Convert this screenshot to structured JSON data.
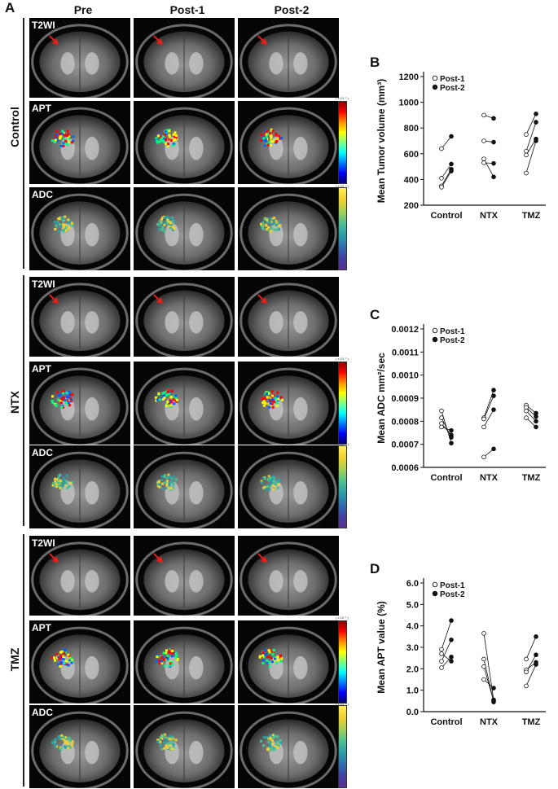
{
  "panel_a": {
    "letter": "A",
    "columns": [
      "Pre",
      "Post-1",
      "Post-2"
    ],
    "groups": [
      {
        "name": "Control",
        "rows": [
          "T2WI",
          "APT",
          "ADC"
        ]
      },
      {
        "name": "NTX",
        "rows": [
          "T2WI",
          "APT",
          "ADC"
        ]
      },
      {
        "name": "TMZ",
        "rows": [
          "T2WI",
          "APT",
          "ADC"
        ]
      }
    ],
    "apt_colorbar_unit": "( x 10⁻¹ )",
    "adc_colorbar_unit": "( x 10⁻⁴ )"
  },
  "colors": {
    "arrow": "#e8201a",
    "apt_map": [
      "#ff0000",
      "#ffff00",
      "#00ff80",
      "#0060ff"
    ],
    "adc_map": [
      "#f2d030",
      "#50c090",
      "#2aa0a8"
    ]
  },
  "chart_data": [
    {
      "letter": "B",
      "type": "scatter",
      "ylabel": "Mean Tumor volume (mm³)",
      "categories": [
        "Control",
        "NTX",
        "TMZ"
      ],
      "ylim": [
        200,
        1200
      ],
      "yticks": [
        "200",
        "400",
        "600",
        "800",
        "1000",
        "1200"
      ],
      "legend": [
        "Post-1",
        "Post-2"
      ],
      "series": [
        {
          "name": "Post-1",
          "fill": "open",
          "points": [
            [
              0,
              640
            ],
            [
              0,
              410
            ],
            [
              0,
              350
            ],
            [
              0,
              340
            ],
            [
              1,
              900
            ],
            [
              1,
              700
            ],
            [
              1,
              560
            ],
            [
              1,
              530
            ],
            [
              2,
              750
            ],
            [
              2,
              620
            ],
            [
              2,
              590
            ],
            [
              2,
              450
            ]
          ]
        },
        {
          "name": "Post-2",
          "fill": "filled",
          "points": [
            [
              0,
              735
            ],
            [
              0,
              520
            ],
            [
              0,
              480
            ],
            [
              0,
              465
            ],
            [
              1,
              875
            ],
            [
              1,
              690
            ],
            [
              1,
              525
            ],
            [
              1,
              420
            ],
            [
              2,
              910
            ],
            [
              2,
              845
            ],
            [
              2,
              715
            ],
            [
              2,
              700
            ]
          ]
        }
      ],
      "pairs": [
        [
          [
            0,
            640
          ],
          [
            0,
            735
          ]
        ],
        [
          [
            0,
            410
          ],
          [
            0,
            520
          ]
        ],
        [
          [
            0,
            350
          ],
          [
            0,
            480
          ]
        ],
        [
          [
            0,
            340
          ],
          [
            0,
            465
          ]
        ],
        [
          [
            1,
            900
          ],
          [
            1,
            875
          ]
        ],
        [
          [
            1,
            700
          ],
          [
            1,
            690
          ]
        ],
        [
          [
            1,
            560
          ],
          [
            1,
            420
          ]
        ],
        [
          [
            1,
            530
          ],
          [
            1,
            525
          ]
        ],
        [
          [
            2,
            750
          ],
          [
            2,
            910
          ]
        ],
        [
          [
            2,
            620
          ],
          [
            2,
            845
          ]
        ],
        [
          [
            2,
            590
          ],
          [
            2,
            715
          ]
        ],
        [
          [
            2,
            450
          ],
          [
            2,
            700
          ]
        ]
      ]
    },
    {
      "letter": "C",
      "type": "scatter",
      "ylabel": "Mean ADC mm²/sec",
      "categories": [
        "Control",
        "NTX",
        "TMZ"
      ],
      "ylim": [
        0.0006,
        0.0012
      ],
      "yticks": [
        "0.0006",
        "0.0007",
        "0.0008",
        "0.0009",
        "0.0010",
        "0.0011",
        "0.0012"
      ],
      "legend": [
        "Post-1",
        "Post-2"
      ],
      "series": [
        {
          "name": "Post-1",
          "fill": "open",
          "points": [
            [
              0,
              0.000845
            ],
            [
              0,
              0.000815
            ],
            [
              0,
              0.00079
            ],
            [
              0,
              0.000775
            ],
            [
              1,
              0.000815
            ],
            [
              1,
              0.00081
            ],
            [
              1,
              0.000775
            ],
            [
              1,
              0.000645
            ],
            [
              2,
              0.00087
            ],
            [
              2,
              0.00086
            ],
            [
              2,
              0.000845
            ],
            [
              2,
              0.000815
            ]
          ]
        },
        {
          "name": "Post-2",
          "fill": "filled",
          "points": [
            [
              0,
              0.00076
            ],
            [
              0,
              0.00074
            ],
            [
              0,
              0.00073
            ],
            [
              0,
              0.000705
            ],
            [
              1,
              0.000935
            ],
            [
              1,
              0.00091
            ],
            [
              1,
              0.00085
            ],
            [
              1,
              0.00068
            ],
            [
              2,
              0.000835
            ],
            [
              2,
              0.00082
            ],
            [
              2,
              0.0008
            ],
            [
              2,
              0.000775
            ]
          ]
        }
      ],
      "pairs": [
        [
          [
            0,
            0.000845
          ],
          [
            0,
            0.000705
          ]
        ],
        [
          [
            0,
            0.000815
          ],
          [
            0,
            0.00073
          ]
        ],
        [
          [
            0,
            0.00079
          ],
          [
            0,
            0.00074
          ]
        ],
        [
          [
            0,
            0.000775
          ],
          [
            0,
            0.00076
          ]
        ],
        [
          [
            1,
            0.000815
          ],
          [
            1,
            0.000935
          ]
        ],
        [
          [
            1,
            0.00081
          ],
          [
            1,
            0.00091
          ]
        ],
        [
          [
            1,
            0.000775
          ],
          [
            1,
            0.00085
          ]
        ],
        [
          [
            1,
            0.000645
          ],
          [
            1,
            0.00068
          ]
        ],
        [
          [
            2,
            0.00087
          ],
          [
            2,
            0.000835
          ]
        ],
        [
          [
            2,
            0.00086
          ],
          [
            2,
            0.00082
          ]
        ],
        [
          [
            2,
            0.000845
          ],
          [
            2,
            0.0008
          ]
        ],
        [
          [
            2,
            0.000815
          ],
          [
            2,
            0.000775
          ]
        ]
      ]
    },
    {
      "letter": "D",
      "type": "scatter",
      "ylabel": "Mean APT value (%)",
      "categories": [
        "Control",
        "NTX",
        "TMZ"
      ],
      "ylim": [
        0,
        6
      ],
      "yticks": [
        "0.0",
        "1.0",
        "2.0",
        "3.0",
        "4.0",
        "5.0",
        "6.0"
      ],
      "legend": [
        "Post-1",
        "Post-2"
      ],
      "series": [
        {
          "name": "Post-1",
          "fill": "open",
          "points": [
            [
              0,
              2.9
            ],
            [
              0,
              2.7
            ],
            [
              0,
              2.35
            ],
            [
              0,
              2.05
            ],
            [
              1,
              3.65
            ],
            [
              1,
              2.45
            ],
            [
              1,
              2.1
            ],
            [
              1,
              1.5
            ],
            [
              2,
              2.45
            ],
            [
              2,
              1.95
            ],
            [
              2,
              1.85
            ],
            [
              2,
              1.2
            ]
          ]
        },
        {
          "name": "Post-2",
          "fill": "filled",
          "points": [
            [
              0,
              4.25
            ],
            [
              0,
              3.35
            ],
            [
              0,
              2.55
            ],
            [
              0,
              2.35
            ],
            [
              1,
              1.1
            ],
            [
              1,
              0.55
            ],
            [
              1,
              0.5
            ],
            [
              1,
              0.45
            ],
            [
              2,
              3.5
            ],
            [
              2,
              2.65
            ],
            [
              2,
              2.3
            ],
            [
              2,
              2.2
            ]
          ]
        }
      ],
      "pairs": [
        [
          [
            0,
            2.9
          ],
          [
            0,
            4.25
          ]
        ],
        [
          [
            0,
            2.7
          ],
          [
            0,
            2.35
          ]
        ],
        [
          [
            0,
            2.35
          ],
          [
            0,
            3.35
          ]
        ],
        [
          [
            0,
            2.05
          ],
          [
            0,
            2.55
          ]
        ],
        [
          [
            1,
            3.65
          ],
          [
            1,
            0.55
          ]
        ],
        [
          [
            1,
            2.45
          ],
          [
            1,
            0.45
          ]
        ],
        [
          [
            1,
            2.1
          ],
          [
            1,
            0.5
          ]
        ],
        [
          [
            1,
            1.5
          ],
          [
            1,
            1.1
          ]
        ],
        [
          [
            2,
            2.45
          ],
          [
            2,
            3.5
          ]
        ],
        [
          [
            2,
            1.95
          ],
          [
            2,
            2.3
          ]
        ],
        [
          [
            2,
            1.85
          ],
          [
            2,
            2.65
          ]
        ],
        [
          [
            2,
            1.2
          ],
          [
            2,
            2.2
          ]
        ]
      ]
    }
  ]
}
